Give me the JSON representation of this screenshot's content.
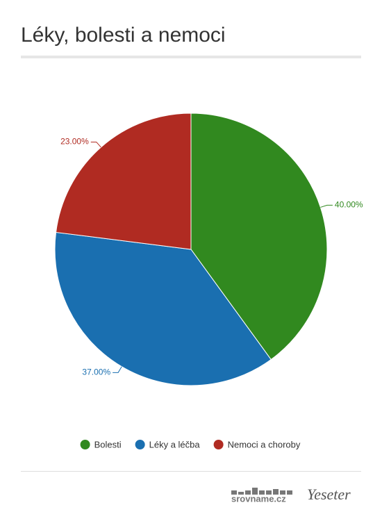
{
  "chart_data": {
    "type": "pie",
    "title": "Léky, bolesti a nemoci",
    "categories": [
      "Bolesti",
      "Léky a léčba",
      "Nemoci a choroby"
    ],
    "values": [
      40,
      37,
      23
    ],
    "value_labels": [
      "40.00%",
      "37.00%",
      "23.00%"
    ],
    "colors": [
      "#31891f",
      "#1a6fb0",
      "#b02b22"
    ],
    "legend": "bottom"
  },
  "footer": {
    "brands": [
      "srovname.cz",
      "Yeseter"
    ]
  }
}
